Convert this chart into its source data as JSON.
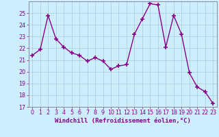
{
  "x": [
    0,
    1,
    2,
    3,
    4,
    5,
    6,
    7,
    8,
    9,
    10,
    11,
    12,
    13,
    14,
    15,
    16,
    17,
    18,
    19,
    20,
    21,
    22,
    23
  ],
  "y": [
    21.4,
    21.9,
    24.8,
    22.8,
    22.1,
    21.6,
    21.4,
    20.9,
    21.2,
    20.9,
    20.2,
    20.5,
    20.6,
    23.2,
    24.5,
    25.8,
    25.7,
    22.1,
    24.8,
    23.2,
    19.9,
    18.7,
    18.3,
    17.3
  ],
  "line_color": "#880088",
  "marker": "+",
  "markersize": 4,
  "linewidth": 1.0,
  "bg_color": "#cceeff",
  "grid_color": "#aacccc",
  "xlabel": "Windchill (Refroidissement éolien,°C)",
  "ylim": [
    17,
    26
  ],
  "xlim": [
    -0.5,
    23.5
  ],
  "yticks": [
    17,
    18,
    19,
    20,
    21,
    22,
    23,
    24,
    25
  ],
  "xticks": [
    0,
    1,
    2,
    3,
    4,
    5,
    6,
    7,
    8,
    9,
    10,
    11,
    12,
    13,
    14,
    15,
    16,
    17,
    18,
    19,
    20,
    21,
    22,
    23
  ],
  "xlabel_fontsize": 6.5,
  "tick_fontsize": 5.8,
  "tick_color": "#880088",
  "label_color": "#880088"
}
